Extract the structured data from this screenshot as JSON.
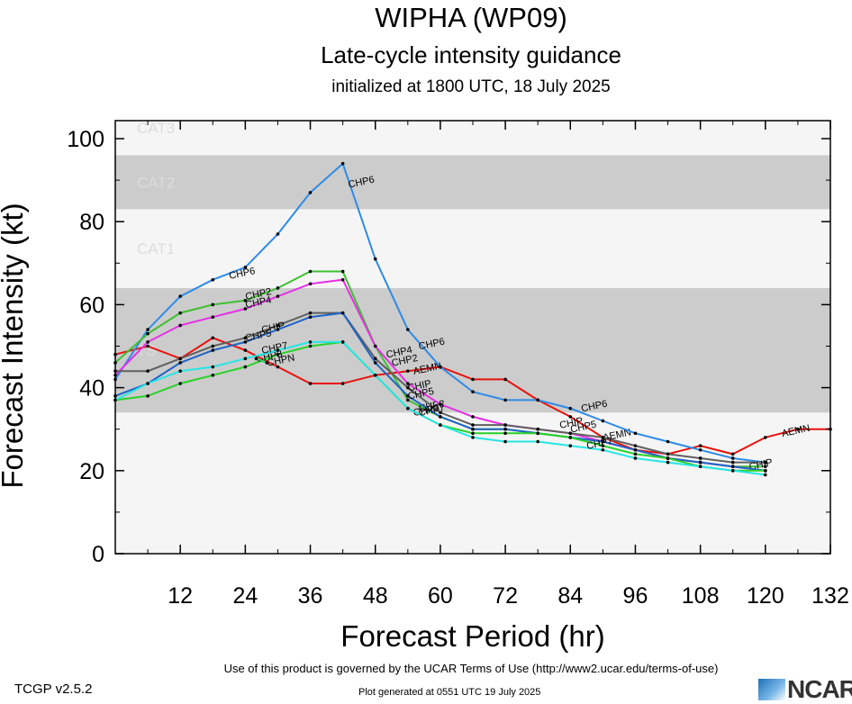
{
  "header": {
    "title": "WIPHA (WP09)",
    "subtitle": "Late-cycle intensity guidance",
    "initialized": "initialized at 1800 UTC, 18 July 2025"
  },
  "footer": {
    "terms": "Use of this product is governed by the UCAR Terms of Use (http://www2.ucar.edu/terms-of-use)",
    "version": "TCGP v2.5.2",
    "generated": "Plot generated at 0551 UTC   19 July 2025",
    "logo_text": "NCAR"
  },
  "chart_data": {
    "type": "line",
    "title": "WIPHA (WP09)",
    "xlabel": "Forecast Period (hr)",
    "ylabel": "Forecast Intensity (kt)",
    "xlim": [
      0,
      132
    ],
    "ylim": [
      0,
      100
    ],
    "xticks": [
      12,
      24,
      36,
      48,
      60,
      72,
      84,
      96,
      108,
      120,
      132
    ],
    "yticks": [
      0,
      20,
      40,
      60,
      80,
      100
    ],
    "grid": false,
    "bands": [
      {
        "name": "TS",
        "ymin": 34,
        "ymax": 64,
        "color": "#cccccc"
      },
      {
        "name": "CAT1",
        "ymin": 64,
        "ymax": 83,
        "color": "#f5f5f5"
      },
      {
        "name": "CAT2",
        "ymin": 83,
        "ymax": 96,
        "color": "#cccccc"
      },
      {
        "name": "CAT3",
        "ymin": 96,
        "ymax": 113,
        "color": "#f5f5f5"
      }
    ],
    "series": [
      {
        "name": "AEMN",
        "color": "#e8120c",
        "x": [
          0,
          6,
          12,
          18,
          24,
          30,
          36,
          42,
          48,
          54,
          60,
          66,
          72,
          78,
          84,
          90,
          96,
          102,
          108,
          114,
          120,
          126,
          132
        ],
        "y": [
          48,
          50,
          47,
          52,
          49,
          45,
          41,
          41,
          43,
          44,
          45,
          42,
          42,
          37,
          33,
          28,
          25,
          24,
          26,
          24,
          28,
          30,
          30
        ],
        "labels": [
          {
            "x": 55,
            "y": 44
          },
          {
            "x": 90,
            "y": 28
          },
          {
            "x": 123,
            "y": 29
          }
        ]
      },
      {
        "name": "CHP6",
        "color": "#2e8be6",
        "x": [
          0,
          6,
          12,
          18,
          24,
          30,
          36,
          42,
          48,
          54,
          60,
          66,
          72,
          78,
          84,
          90,
          96,
          102,
          108,
          114,
          120
        ],
        "y": [
          42,
          54,
          62,
          66,
          69,
          77,
          87,
          94,
          71,
          54,
          45,
          39,
          37,
          37,
          35,
          32,
          29,
          27,
          25,
          23,
          22
        ],
        "labels": [
          {
            "x": 21,
            "y": 67
          },
          {
            "x": 43,
            "y": 89
          },
          {
            "x": 56,
            "y": 50
          },
          {
            "x": 86,
            "y": 35
          }
        ]
      },
      {
        "name": "CHP2",
        "color": "#3fbf32",
        "x": [
          0,
          6,
          12,
          18,
          24,
          30,
          36,
          42,
          48,
          54,
          60,
          66,
          72,
          78,
          84,
          90,
          96,
          102,
          108,
          114,
          120
        ],
        "y": [
          46,
          53,
          58,
          60,
          61,
          64,
          68,
          68,
          50,
          37,
          33,
          30,
          30,
          29,
          28,
          27,
          25,
          23,
          22,
          21,
          21
        ],
        "labels": [
          {
            "x": 24,
            "y": 62
          },
          {
            "x": 51,
            "y": 46
          },
          {
            "x": 56,
            "y": 35
          }
        ]
      },
      {
        "name": "CHP4",
        "color": "#e62ee6",
        "x": [
          0,
          6,
          12,
          18,
          24,
          30,
          36,
          42,
          48,
          54,
          60,
          66,
          72,
          78,
          84,
          90,
          96,
          102,
          108,
          114,
          120
        ],
        "y": [
          43,
          51,
          55,
          57,
          59,
          62,
          65,
          66,
          50,
          41,
          36,
          33,
          31,
          30,
          29,
          27,
          25,
          23,
          22,
          21,
          20
        ],
        "labels": [
          {
            "x": 24,
            "y": 60
          },
          {
            "x": 50,
            "y": 48
          }
        ]
      },
      {
        "name": "CHIP",
        "color": "#606060",
        "x": [
          0,
          6,
          12,
          18,
          24,
          30,
          36,
          42,
          48,
          54,
          60,
          66,
          72,
          78,
          84,
          90,
          96,
          102,
          108,
          114,
          120
        ],
        "y": [
          44,
          44,
          47,
          50,
          52,
          55,
          58,
          58,
          47,
          40,
          34,
          31,
          31,
          30,
          29,
          28,
          26,
          24,
          23,
          22,
          22
        ],
        "labels": [
          {
            "x": 27,
            "y": 54
          },
          {
            "x": 54,
            "y": 40
          },
          {
            "x": 82,
            "y": 31
          },
          {
            "x": 117,
            "y": 21
          }
        ]
      },
      {
        "name": "CHP5",
        "color": "#1e64c8",
        "x": [
          0,
          6,
          12,
          18,
          24,
          30,
          36,
          42,
          48,
          54,
          60,
          66,
          72,
          78,
          84,
          90,
          96,
          102,
          108,
          114,
          120
        ],
        "y": [
          38,
          41,
          46,
          49,
          51,
          54,
          57,
          58,
          46,
          38,
          33,
          30,
          30,
          29,
          28,
          27,
          25,
          23,
          22,
          21,
          20
        ],
        "labels": [
          {
            "x": 24,
            "y": 52
          },
          {
            "x": 54,
            "y": 38
          },
          {
            "x": 84,
            "y": 30
          }
        ]
      },
      {
        "name": "CHP3",
        "color": "#28d228",
        "x": [
          0,
          6,
          12,
          18,
          24,
          30,
          36,
          42,
          48,
          54,
          60,
          66,
          72,
          78,
          84,
          90,
          96,
          102,
          108,
          114,
          120
        ],
        "y": [
          37,
          38,
          41,
          43,
          45,
          48,
          50,
          51,
          43,
          35,
          31,
          29,
          29,
          29,
          28,
          26,
          24,
          23,
          21,
          20,
          20
        ],
        "labels": [
          {
            "x": 26,
            "y": 47
          },
          {
            "x": 55,
            "y": 34
          }
        ]
      },
      {
        "name": "CHP7",
        "color": "#24e6e6",
        "x": [
          0,
          6,
          12,
          18,
          24,
          30,
          36,
          42,
          48,
          54,
          60,
          66,
          72,
          78,
          84,
          90,
          96,
          102,
          108,
          114,
          120
        ],
        "y": [
          37,
          41,
          44,
          45,
          47,
          49,
          51,
          51,
          43,
          35,
          31,
          28,
          27,
          27,
          26,
          25,
          23,
          22,
          21,
          20,
          19
        ],
        "labels": [
          {
            "x": 27,
            "y": 49
          },
          {
            "x": 56,
            "y": 34
          },
          {
            "x": 87,
            "y": 26
          }
        ]
      },
      {
        "name": "CHPN",
        "color": "#32c864",
        "x": [
          26,
          28
        ],
        "y": [
          47,
          46
        ],
        "labels": [
          {
            "x": 28,
            "y": 46
          }
        ]
      }
    ]
  }
}
